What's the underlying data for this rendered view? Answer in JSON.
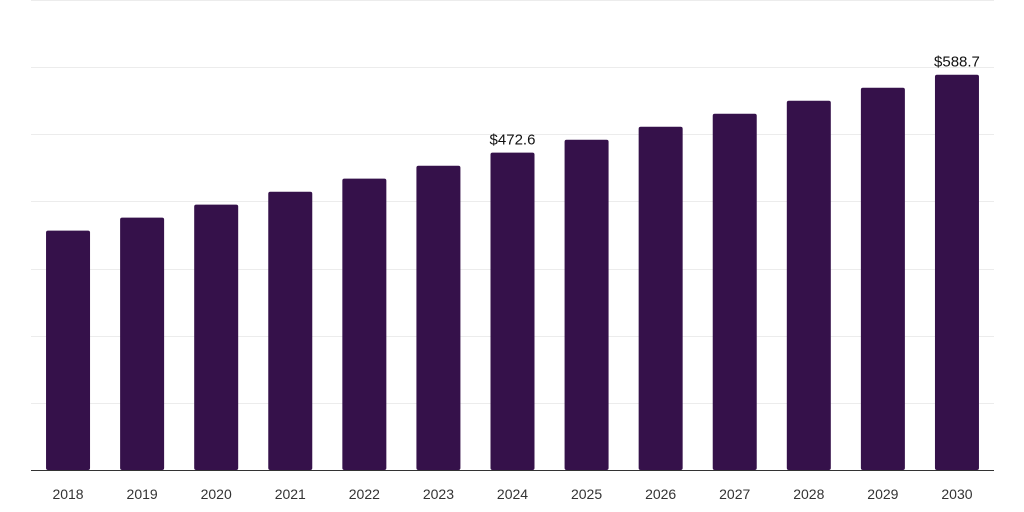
{
  "chart_data": {
    "type": "bar",
    "title": "",
    "xlabel": "",
    "ylabel": "",
    "categories": [
      "2018",
      "2019",
      "2020",
      "2021",
      "2022",
      "2023",
      "2024",
      "2025",
      "2026",
      "2027",
      "2028",
      "2029",
      "2030"
    ],
    "values": [
      356.5,
      375.8,
      395.2,
      414.5,
      433.9,
      453.2,
      472.6,
      491.9,
      511.3,
      530.6,
      550.0,
      569.3,
      588.7
    ],
    "data_labels": [
      "",
      "",
      "",
      "",
      "",
      "",
      "$472.6",
      "",
      "",
      "",
      "",
      "",
      "$588.7"
    ],
    "ylim": [
      0,
      700
    ],
    "grid": true,
    "legend": "none",
    "bar_color": "#35114a",
    "axis_color": "#333333",
    "grid_color": "#ececec"
  }
}
